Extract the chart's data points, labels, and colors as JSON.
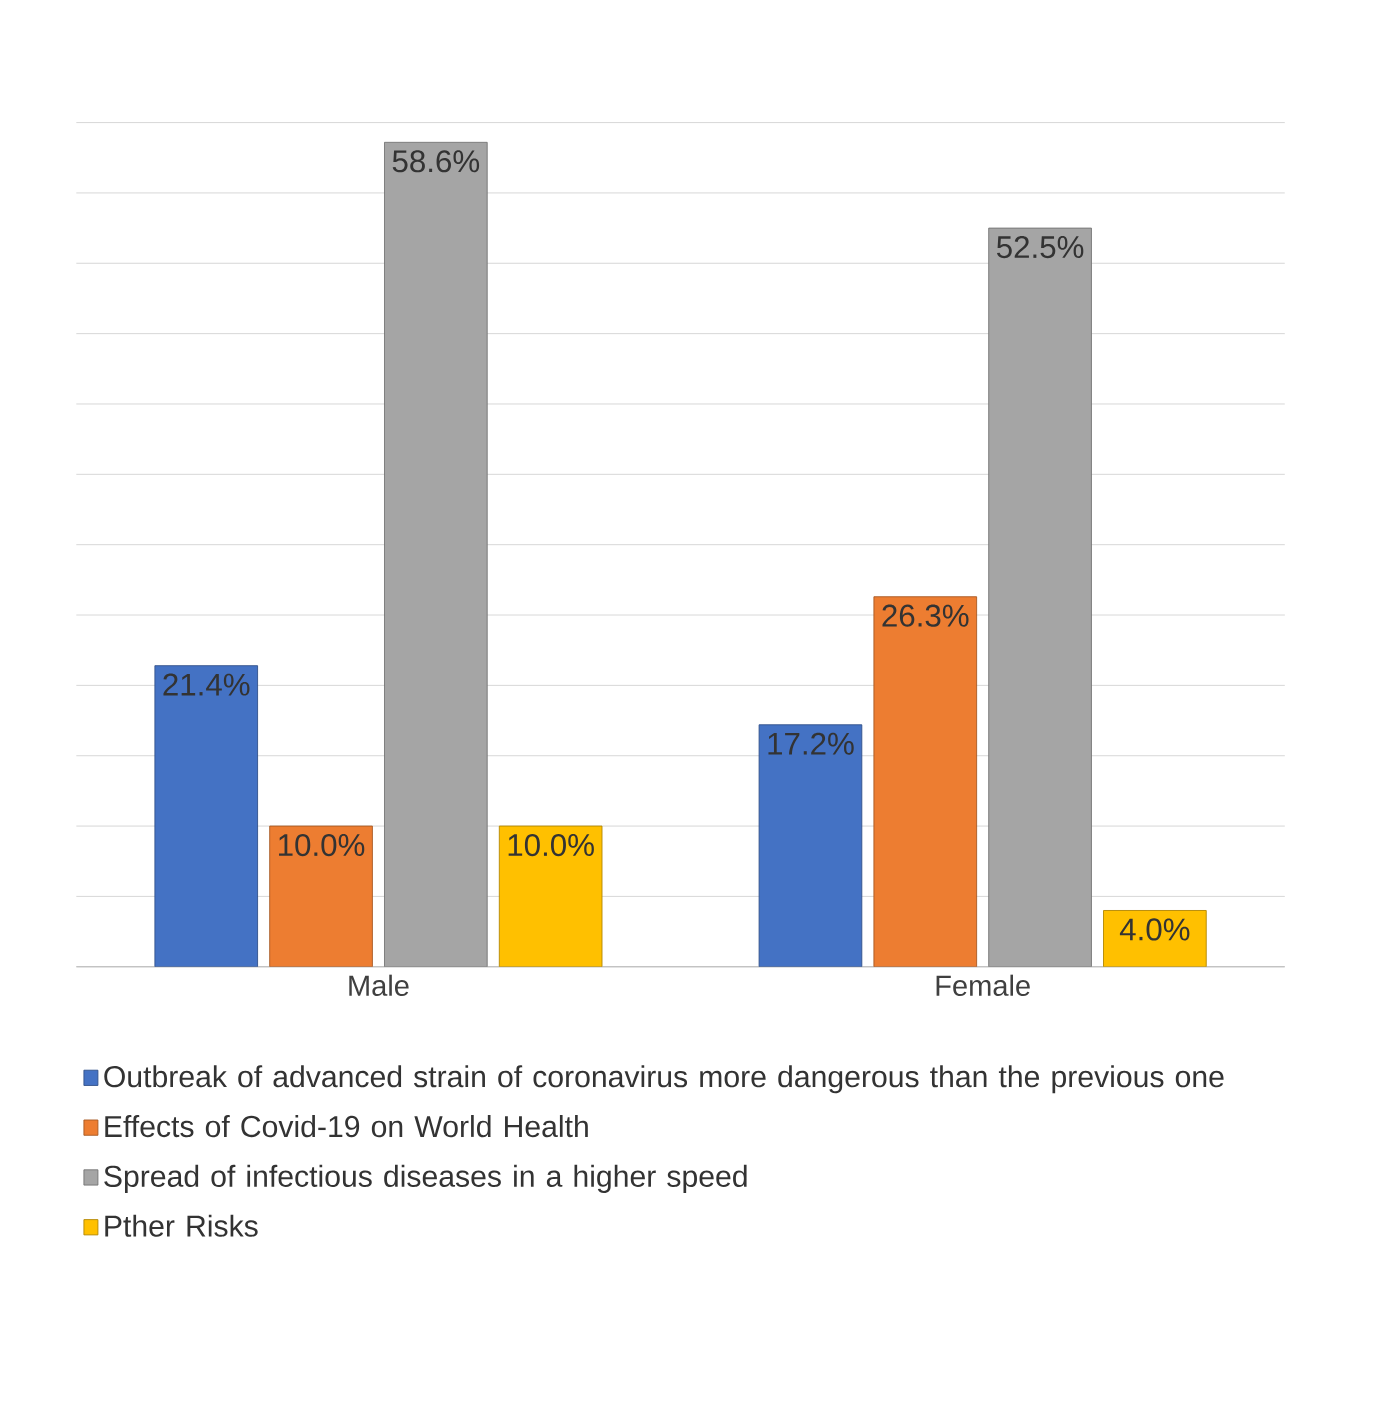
{
  "chart_data": {
    "type": "bar",
    "categories": [
      "Male",
      "Female"
    ],
    "series": [
      {
        "name": "Outbreak of advanced strain of coronavirus more dangerous than the previous one",
        "color": "#4472c4",
        "values": [
          21.4,
          17.2
        ],
        "value_labels": [
          "21.4%",
          "17.2%"
        ]
      },
      {
        "name": "Effects of Covid-19 on World Health",
        "color": "#ed7d31",
        "values": [
          10.0,
          26.3
        ],
        "value_labels": [
          "10.0%",
          "26.3%"
        ]
      },
      {
        "name": "Spread of infectious diseases in a higher speed",
        "color": "#a5a5a5",
        "values": [
          58.6,
          52.5
        ],
        "value_labels": [
          "58.6%",
          "52.5%"
        ]
      },
      {
        "name": "Pther Risks",
        "color": "#ffc000",
        "values": [
          10.0,
          4.0
        ],
        "value_labels": [
          "10.0%",
          "4.0%"
        ]
      }
    ],
    "grid": "y",
    "legend": "bottom",
    "tick_labels": "x"
  }
}
